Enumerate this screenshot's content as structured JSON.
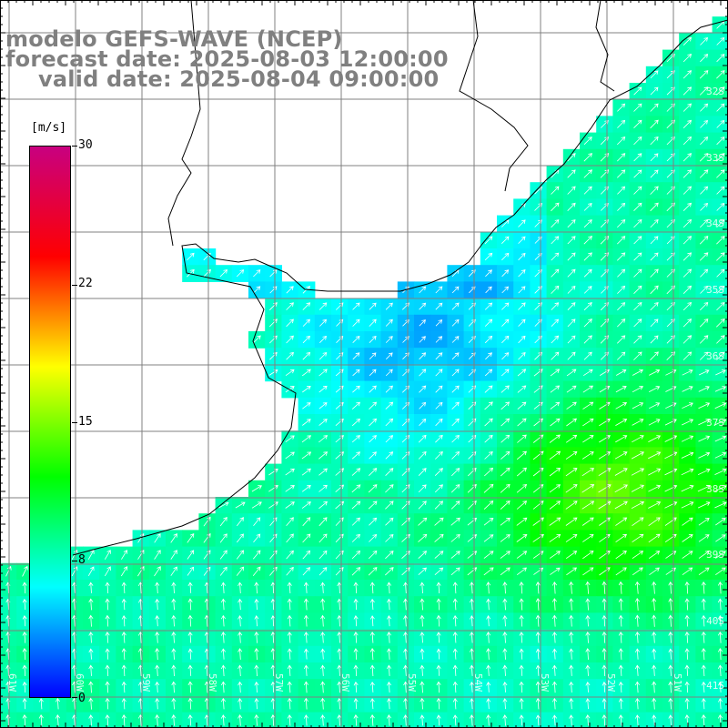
{
  "title": {
    "model": "modelo GEFS-WAVE (NCEP)",
    "forecast": "forecast date: 2025-08-03 12:00:00",
    "valid": "valid date: 2025-08-04 09:00:00"
  },
  "colorbar": {
    "unit": "[m/s]",
    "ticks": [
      "30",
      "22",
      "15",
      "8",
      "0"
    ],
    "tick_values": [
      30,
      22,
      15,
      8,
      0
    ],
    "min": 0,
    "max": 30,
    "colors": [
      "#0000ff",
      "#00ffff",
      "#00ff00",
      "#ffff00",
      "#ff0000",
      "#c80080"
    ]
  },
  "axes": {
    "lat_labels": [
      "32S",
      "33S",
      "34S",
      "35S",
      "36S",
      "37S",
      "38S",
      "39S",
      "40S",
      "41S"
    ],
    "lon_labels": [
      "61W",
      "60W",
      "59W",
      "58W",
      "57W",
      "56W",
      "55W",
      "54W",
      "53W",
      "52W",
      "51W"
    ]
  },
  "field": {
    "coast_color": "#000000",
    "grid_color": "#808080",
    "arrow_color": "#ffffff"
  }
}
